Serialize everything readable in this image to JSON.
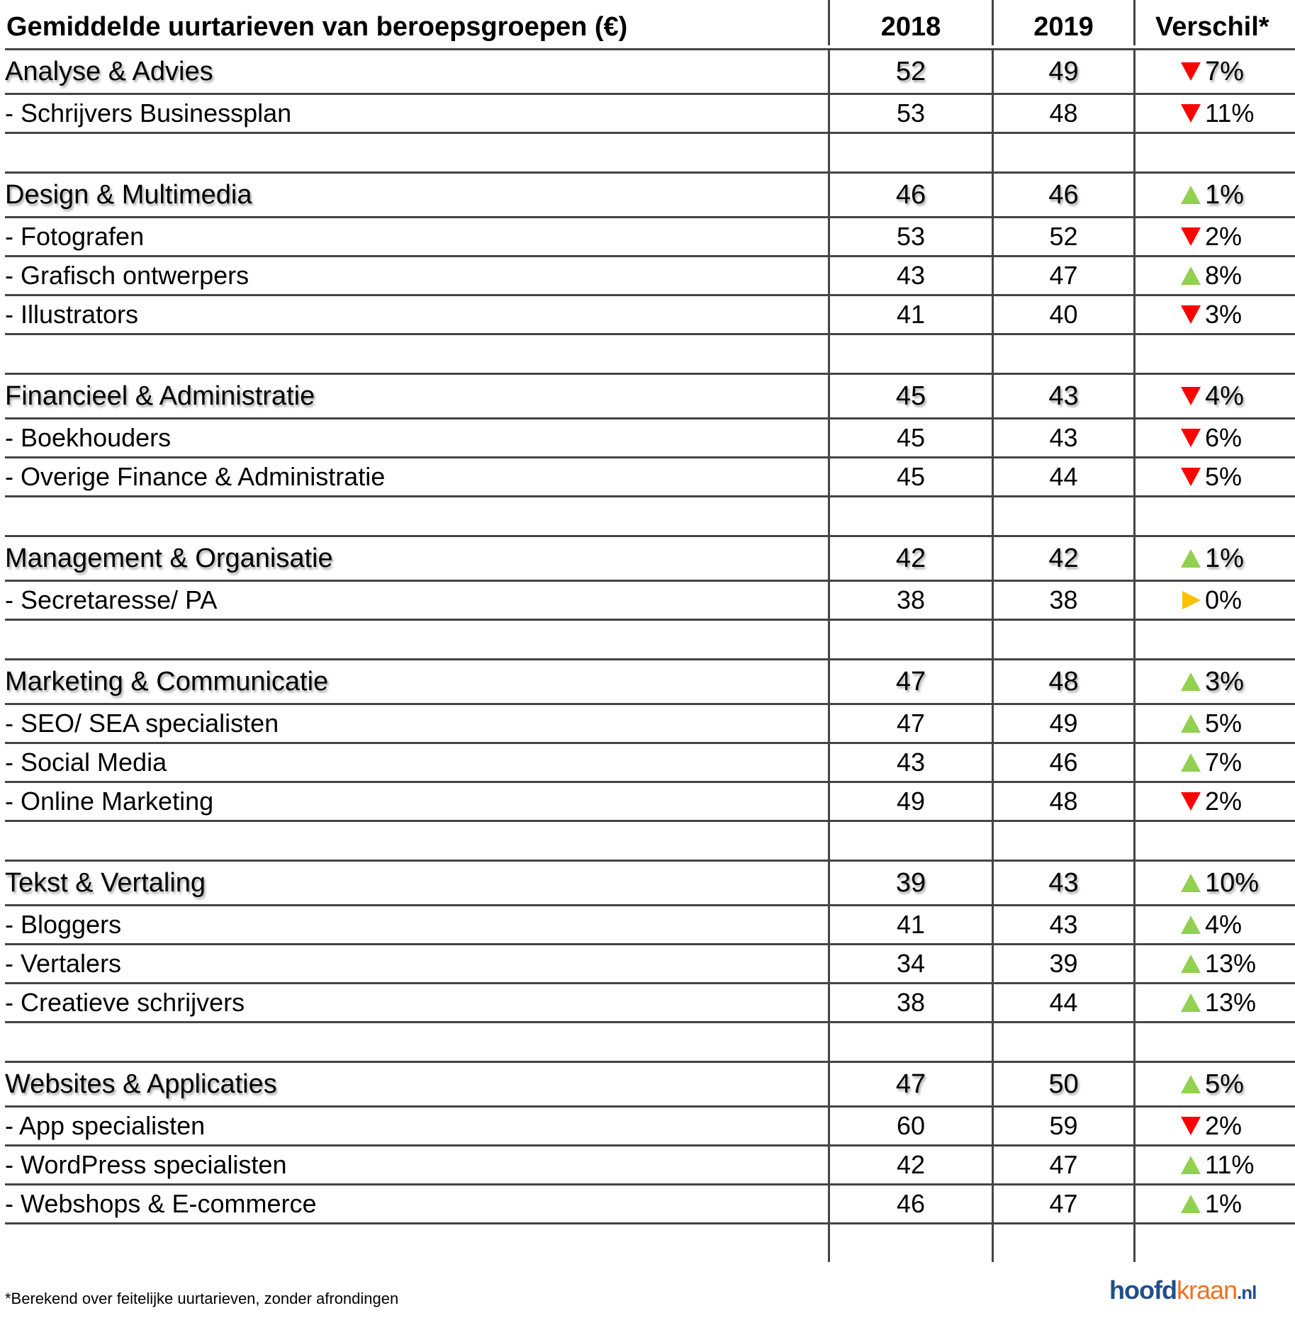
{
  "header": {
    "title": "Gemiddelde uurtarieven van beroepsgroepen (€)",
    "col2018": "2018",
    "col2019": "2019",
    "colDiff": "Verschil*"
  },
  "colors": {
    "down": "#ff0000",
    "up": "#92d050",
    "flat": "#ffc000"
  },
  "rows": [
    {
      "type": "group",
      "label": "Analyse & Advies",
      "v2018": "52",
      "v2019": "49",
      "dir": "down",
      "diff": "7%"
    },
    {
      "type": "item",
      "label": "- Schrijvers Businessplan",
      "v2018": "53",
      "v2019": "48",
      "dir": "down",
      "diff": "11%"
    },
    {
      "type": "blank"
    },
    {
      "type": "group",
      "label": "Design & Multimedia",
      "v2018": "46",
      "v2019": "46",
      "dir": "up",
      "diff": "1%"
    },
    {
      "type": "item",
      "label": "- Fotografen",
      "v2018": "53",
      "v2019": "52",
      "dir": "down",
      "diff": "2%"
    },
    {
      "type": "item",
      "label": "- Grafisch ontwerpers",
      "v2018": "43",
      "v2019": "47",
      "dir": "up",
      "diff": "8%"
    },
    {
      "type": "item",
      "label": "- Illustrators",
      "v2018": "41",
      "v2019": "40",
      "dir": "down",
      "diff": "3%"
    },
    {
      "type": "blank"
    },
    {
      "type": "group",
      "label": "Financieel & Administratie",
      "v2018": "45",
      "v2019": "43",
      "dir": "down",
      "diff": "4%"
    },
    {
      "type": "item",
      "label": "- Boekhouders",
      "v2018": "45",
      "v2019": "43",
      "dir": "down",
      "diff": "6%"
    },
    {
      "type": "item",
      "label": "- Overige Finance & Administratie",
      "v2018": "45",
      "v2019": "44",
      "dir": "down",
      "diff": "5%"
    },
    {
      "type": "blank"
    },
    {
      "type": "group",
      "label": "Management & Organisatie",
      "v2018": "42",
      "v2019": "42",
      "dir": "up",
      "diff": "1%"
    },
    {
      "type": "item",
      "label": "- Secretaresse/ PA",
      "v2018": "38",
      "v2019": "38",
      "dir": "flat",
      "diff": "0%"
    },
    {
      "type": "blank"
    },
    {
      "type": "group",
      "label": "Marketing & Communicatie",
      "v2018": "47",
      "v2019": "48",
      "dir": "up",
      "diff": "3%"
    },
    {
      "type": "item",
      "label": "- SEO/ SEA specialisten",
      "v2018": "47",
      "v2019": "49",
      "dir": "up",
      "diff": "5%"
    },
    {
      "type": "item",
      "label": "- Social Media",
      "v2018": "43",
      "v2019": "46",
      "dir": "up",
      "diff": "7%"
    },
    {
      "type": "item",
      "label": "- Online Marketing",
      "v2018": "49",
      "v2019": "48",
      "dir": "down",
      "diff": "2%"
    },
    {
      "type": "blank"
    },
    {
      "type": "group",
      "label": "Tekst & Vertaling",
      "v2018": "39",
      "v2019": "43",
      "dir": "up",
      "diff": "10%"
    },
    {
      "type": "item",
      "label": "- Bloggers",
      "v2018": "41",
      "v2019": "43",
      "dir": "up",
      "diff": "4%"
    },
    {
      "type": "item",
      "label": "- Vertalers",
      "v2018": "34",
      "v2019": "39",
      "dir": "up",
      "diff": "13%"
    },
    {
      "type": "item",
      "label": "- Creatieve schrijvers",
      "v2018": "38",
      "v2019": "44",
      "dir": "up",
      "diff": "13%"
    },
    {
      "type": "blank"
    },
    {
      "type": "group",
      "label": "Websites & Applicaties",
      "v2018": "47",
      "v2019": "50",
      "dir": "up",
      "diff": "5%"
    },
    {
      "type": "item",
      "label": "- App specialisten",
      "v2018": "60",
      "v2019": "59",
      "dir": "down",
      "diff": "2%"
    },
    {
      "type": "item",
      "label": "- WordPress specialisten",
      "v2018": "42",
      "v2019": "47",
      "dir": "up",
      "diff": "11%"
    },
    {
      "type": "item",
      "label": "- Webshops & E-commerce",
      "v2018": "46",
      "v2019": "47",
      "dir": "up",
      "diff": "1%"
    }
  ],
  "footnote": "*Berekend over feitelijke uurtarieven, zonder afrondingen",
  "logo": {
    "part1": "hoofd",
    "part2": "kraan",
    "part3": ".nl"
  }
}
